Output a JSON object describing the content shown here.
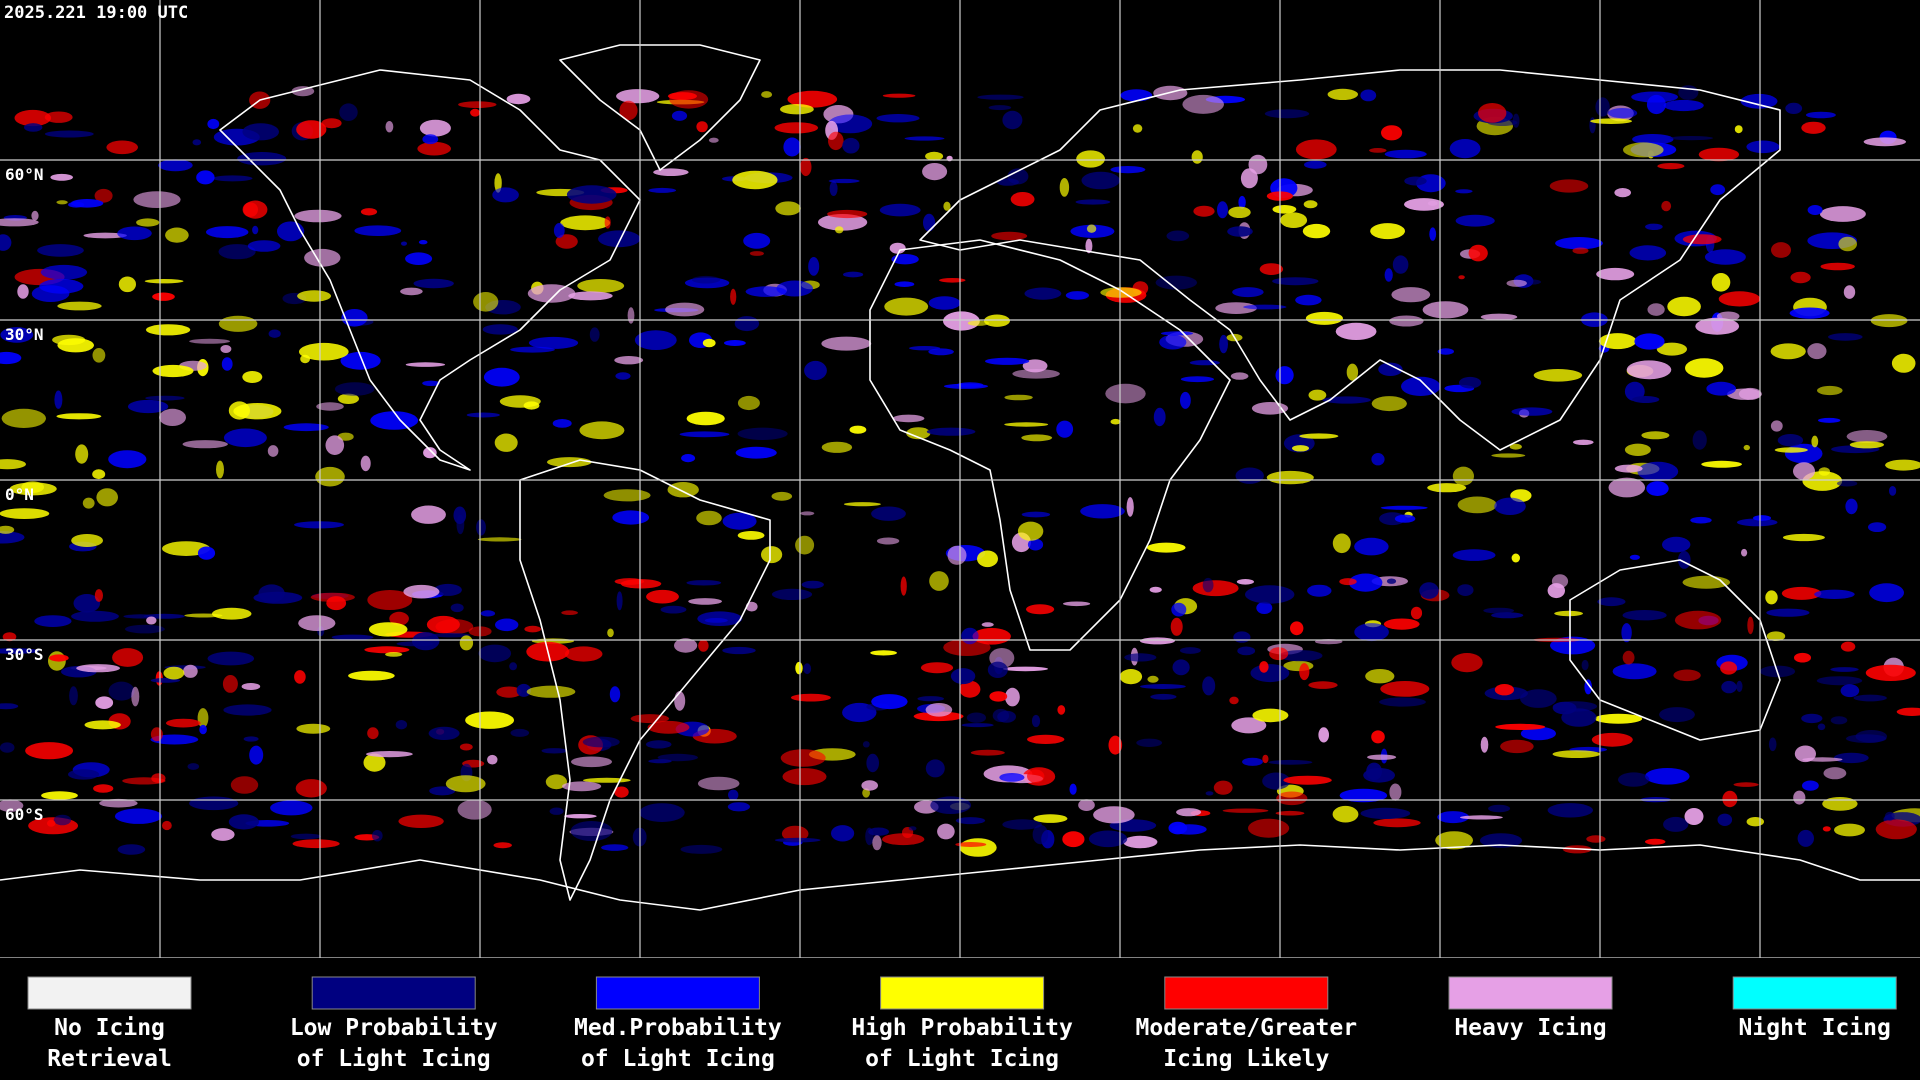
{
  "timestamp": "2025.221 19:00 UTC",
  "latitude_labels": [
    "60°N",
    "30°N",
    "0°N",
    "30°S",
    "60°S"
  ],
  "legend": [
    {
      "lines": [
        "No Icing",
        "Retrieval"
      ],
      "color": "#f2f2f2"
    },
    {
      "lines": [
        "Low Probability",
        "of Light Icing"
      ],
      "color": "#000080"
    },
    {
      "lines": [
        "Med.Probability",
        "of Light Icing"
      ],
      "color": "#0000ff"
    },
    {
      "lines": [
        "High Probability",
        "of Light Icing"
      ],
      "color": "#ffff00"
    },
    {
      "lines": [
        "Moderate/Greater",
        "Icing Likely"
      ],
      "color": "#ff0000"
    },
    {
      "lines": [
        "Heavy Icing"
      ],
      "color": "#e6a0e6"
    },
    {
      "lines": [
        "Night Icing"
      ],
      "color": "#00ffff"
    }
  ]
}
